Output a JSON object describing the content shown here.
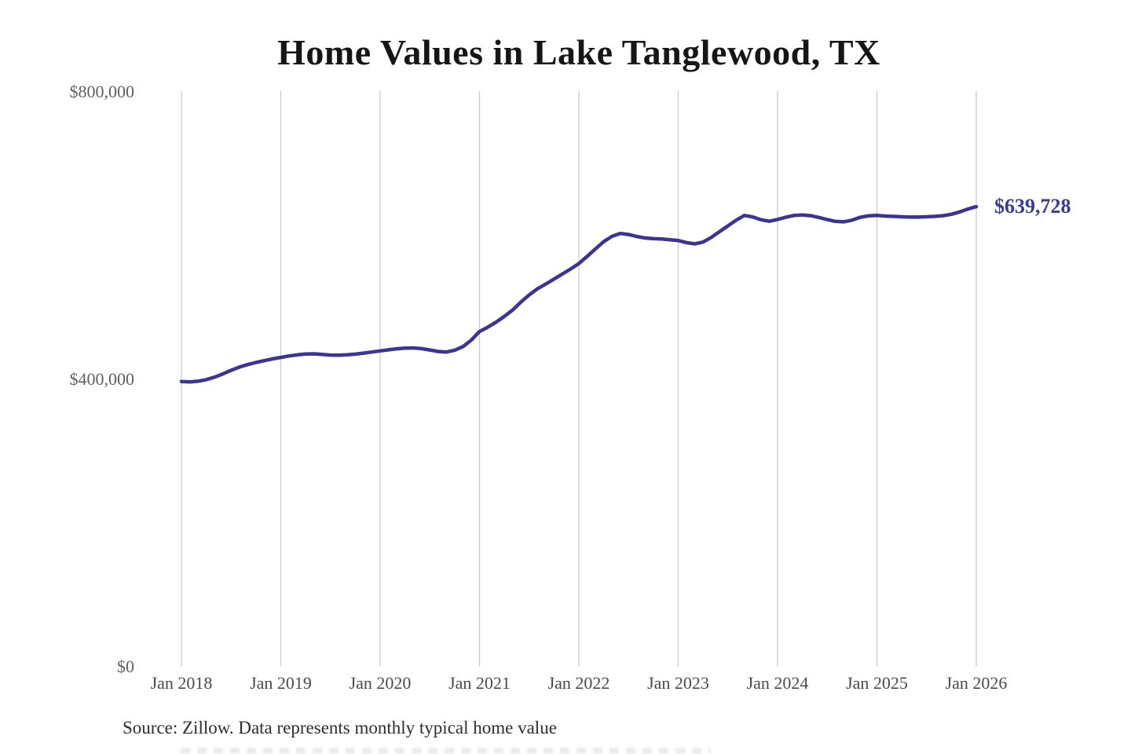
{
  "colors": {
    "background": "#ffffff",
    "line": "#3b3490",
    "end_label_text": "#3b3a94",
    "gridline": "#cbcbcb",
    "y_tick_label": "#5f5f5f",
    "x_tick_label": "#4b4b4b",
    "title": "#161616",
    "source": "#2d2d2d"
  },
  "chart_data": {
    "type": "line",
    "title": "Home Values in Lake Tanglewood, TX",
    "source_note": "Source: Zillow. Data represents monthly typical home value",
    "end_label": "$639,728",
    "final_value": 639728,
    "unit": "USD",
    "frequency": "monthly",
    "x_start": "2018-01",
    "x_end": "2026-01",
    "x_tick_labels": [
      "Jan 2018",
      "Jan 2019",
      "Jan 2020",
      "Jan 2021",
      "Jan 2022",
      "Jan 2023",
      "Jan 2024",
      "Jan 2025",
      "Jan 2026"
    ],
    "y_ticks": [
      {
        "label": "$0",
        "value": 0
      },
      {
        "label": "$400,000",
        "value": 400000
      },
      {
        "label": "$800,000",
        "value": 800000
      }
    ],
    "ylim": [
      0,
      800000
    ],
    "grid": "vertical",
    "legend": "none",
    "series": [
      {
        "name": "Monthly typical home value",
        "values": [
          396500,
          396000,
          396800,
          399000,
          402500,
          407000,
          412000,
          416500,
          420000,
          423000,
          425500,
          428000,
          430000,
          432000,
          433500,
          434800,
          435000,
          434200,
          433200,
          433000,
          433600,
          434500,
          436000,
          437500,
          439000,
          440500,
          442000,
          443000,
          443200,
          442200,
          440300,
          438300,
          437500,
          440000,
          445000,
          454000,
          466000,
          472000,
          479000,
          487000,
          496000,
          507000,
          517000,
          525500,
          532000,
          539000,
          546000,
          553000,
          560500,
          570500,
          581000,
          591000,
          598500,
          602500,
          601000,
          598200,
          596200,
          595200,
          594700,
          593700,
          592700,
          589700,
          588000,
          590500,
          597000,
          605000,
          613000,
          621000,
          627500,
          625500,
          621500,
          619500,
          622000,
          625000,
          627500,
          628200,
          627200,
          624700,
          621700,
          619200,
          618700,
          621000,
          625000,
          627000,
          627500,
          626700,
          626200,
          625700,
          625200,
          625200,
          625700,
          626200,
          627200,
          629200,
          632500,
          636500,
          639728
        ]
      }
    ]
  }
}
